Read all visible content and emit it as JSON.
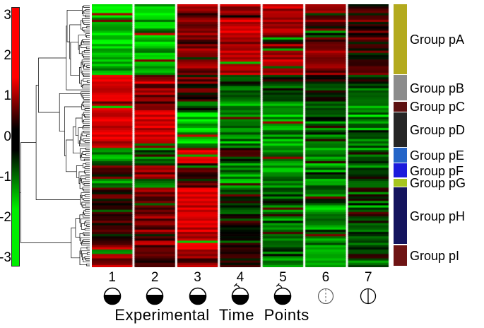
{
  "figure": {
    "caption": "Experimental Time Points",
    "colorbar": {
      "ticks": [
        "3",
        "2",
        "1",
        "0",
        "-1",
        "-2",
        "-3"
      ],
      "top_color": "#ff0000",
      "mid_color": "#000000",
      "bottom_color": "#00ee00"
    },
    "timepoints": [
      {
        "label": "1",
        "icon": "seed-half-filled"
      },
      {
        "label": "2",
        "icon": "seed-half-filled"
      },
      {
        "label": "3",
        "icon": "seed-half-filled"
      },
      {
        "label": "4",
        "icon": "seed-half-filled-sprout"
      },
      {
        "label": "5",
        "icon": "seed-half-filled-sprout"
      },
      {
        "label": "6",
        "icon": "circle-dashed-line"
      },
      {
        "label": "7",
        "icon": "circle-solid-line"
      }
    ]
  },
  "chart_data": {
    "type": "heatmap",
    "title": "",
    "xlabel": "Experimental Time Points",
    "ylabel": "",
    "columns": [
      "1",
      "2",
      "3",
      "4",
      "5",
      "6",
      "7"
    ],
    "value_domain": [
      -3,
      3
    ],
    "colorscale": [
      "#00ff00",
      "#000000",
      "#ff0000"
    ],
    "legend_position": "right",
    "noise_sd": 0.9,
    "row_groups": [
      {
        "label": "Group pA",
        "color": "#b3aa1e",
        "rows": 32,
        "column_means": [
          -2.2,
          -2.0,
          1.2,
          1.9,
          1.8,
          1.2,
          0.6
        ]
      },
      {
        "label": "Group pB",
        "color": "#8c8c8c",
        "rows": 12,
        "column_means": [
          2.2,
          1.4,
          0.2,
          -1.2,
          -1.0,
          -0.7,
          -0.9
        ]
      },
      {
        "label": "Group pC",
        "color": "#5d1111",
        "rows": 5,
        "column_means": [
          2.2,
          1.8,
          -0.6,
          -1.5,
          -1.2,
          -1.0,
          -1.2
        ]
      },
      {
        "label": "Group pD",
        "color": "#262626",
        "rows": 16,
        "column_means": [
          2.5,
          2.0,
          -2.4,
          -1.6,
          -1.8,
          -1.0,
          -1.4
        ]
      },
      {
        "label": "Group pE",
        "color": "#2565c8",
        "rows": 7,
        "column_means": [
          -1.6,
          -0.8,
          2.5,
          0.2,
          -1.4,
          -1.2,
          -1.0
        ]
      },
      {
        "label": "Group pF",
        "color": "#1b1bdc",
        "rows": 7,
        "column_means": [
          0.5,
          1.5,
          1.0,
          -1.4,
          -1.4,
          -1.2,
          -0.6
        ]
      },
      {
        "label": "Group pG",
        "color": "#a6c520",
        "rows": 4,
        "column_means": [
          -1.5,
          -1.5,
          0.5,
          -1.5,
          -1.5,
          -1.5,
          -1.5
        ]
      },
      {
        "label": "Group pH",
        "color": "#14145e",
        "rows": 26,
        "column_means": [
          0.3,
          1.2,
          2.4,
          -0.4,
          -1.0,
          -1.4,
          -0.8
        ]
      },
      {
        "label": "Group pI",
        "color": "#6e1414",
        "rows": 10,
        "column_means": [
          1.5,
          0.5,
          1.8,
          0.3,
          -0.8,
          -1.4,
          -0.5
        ]
      }
    ]
  }
}
